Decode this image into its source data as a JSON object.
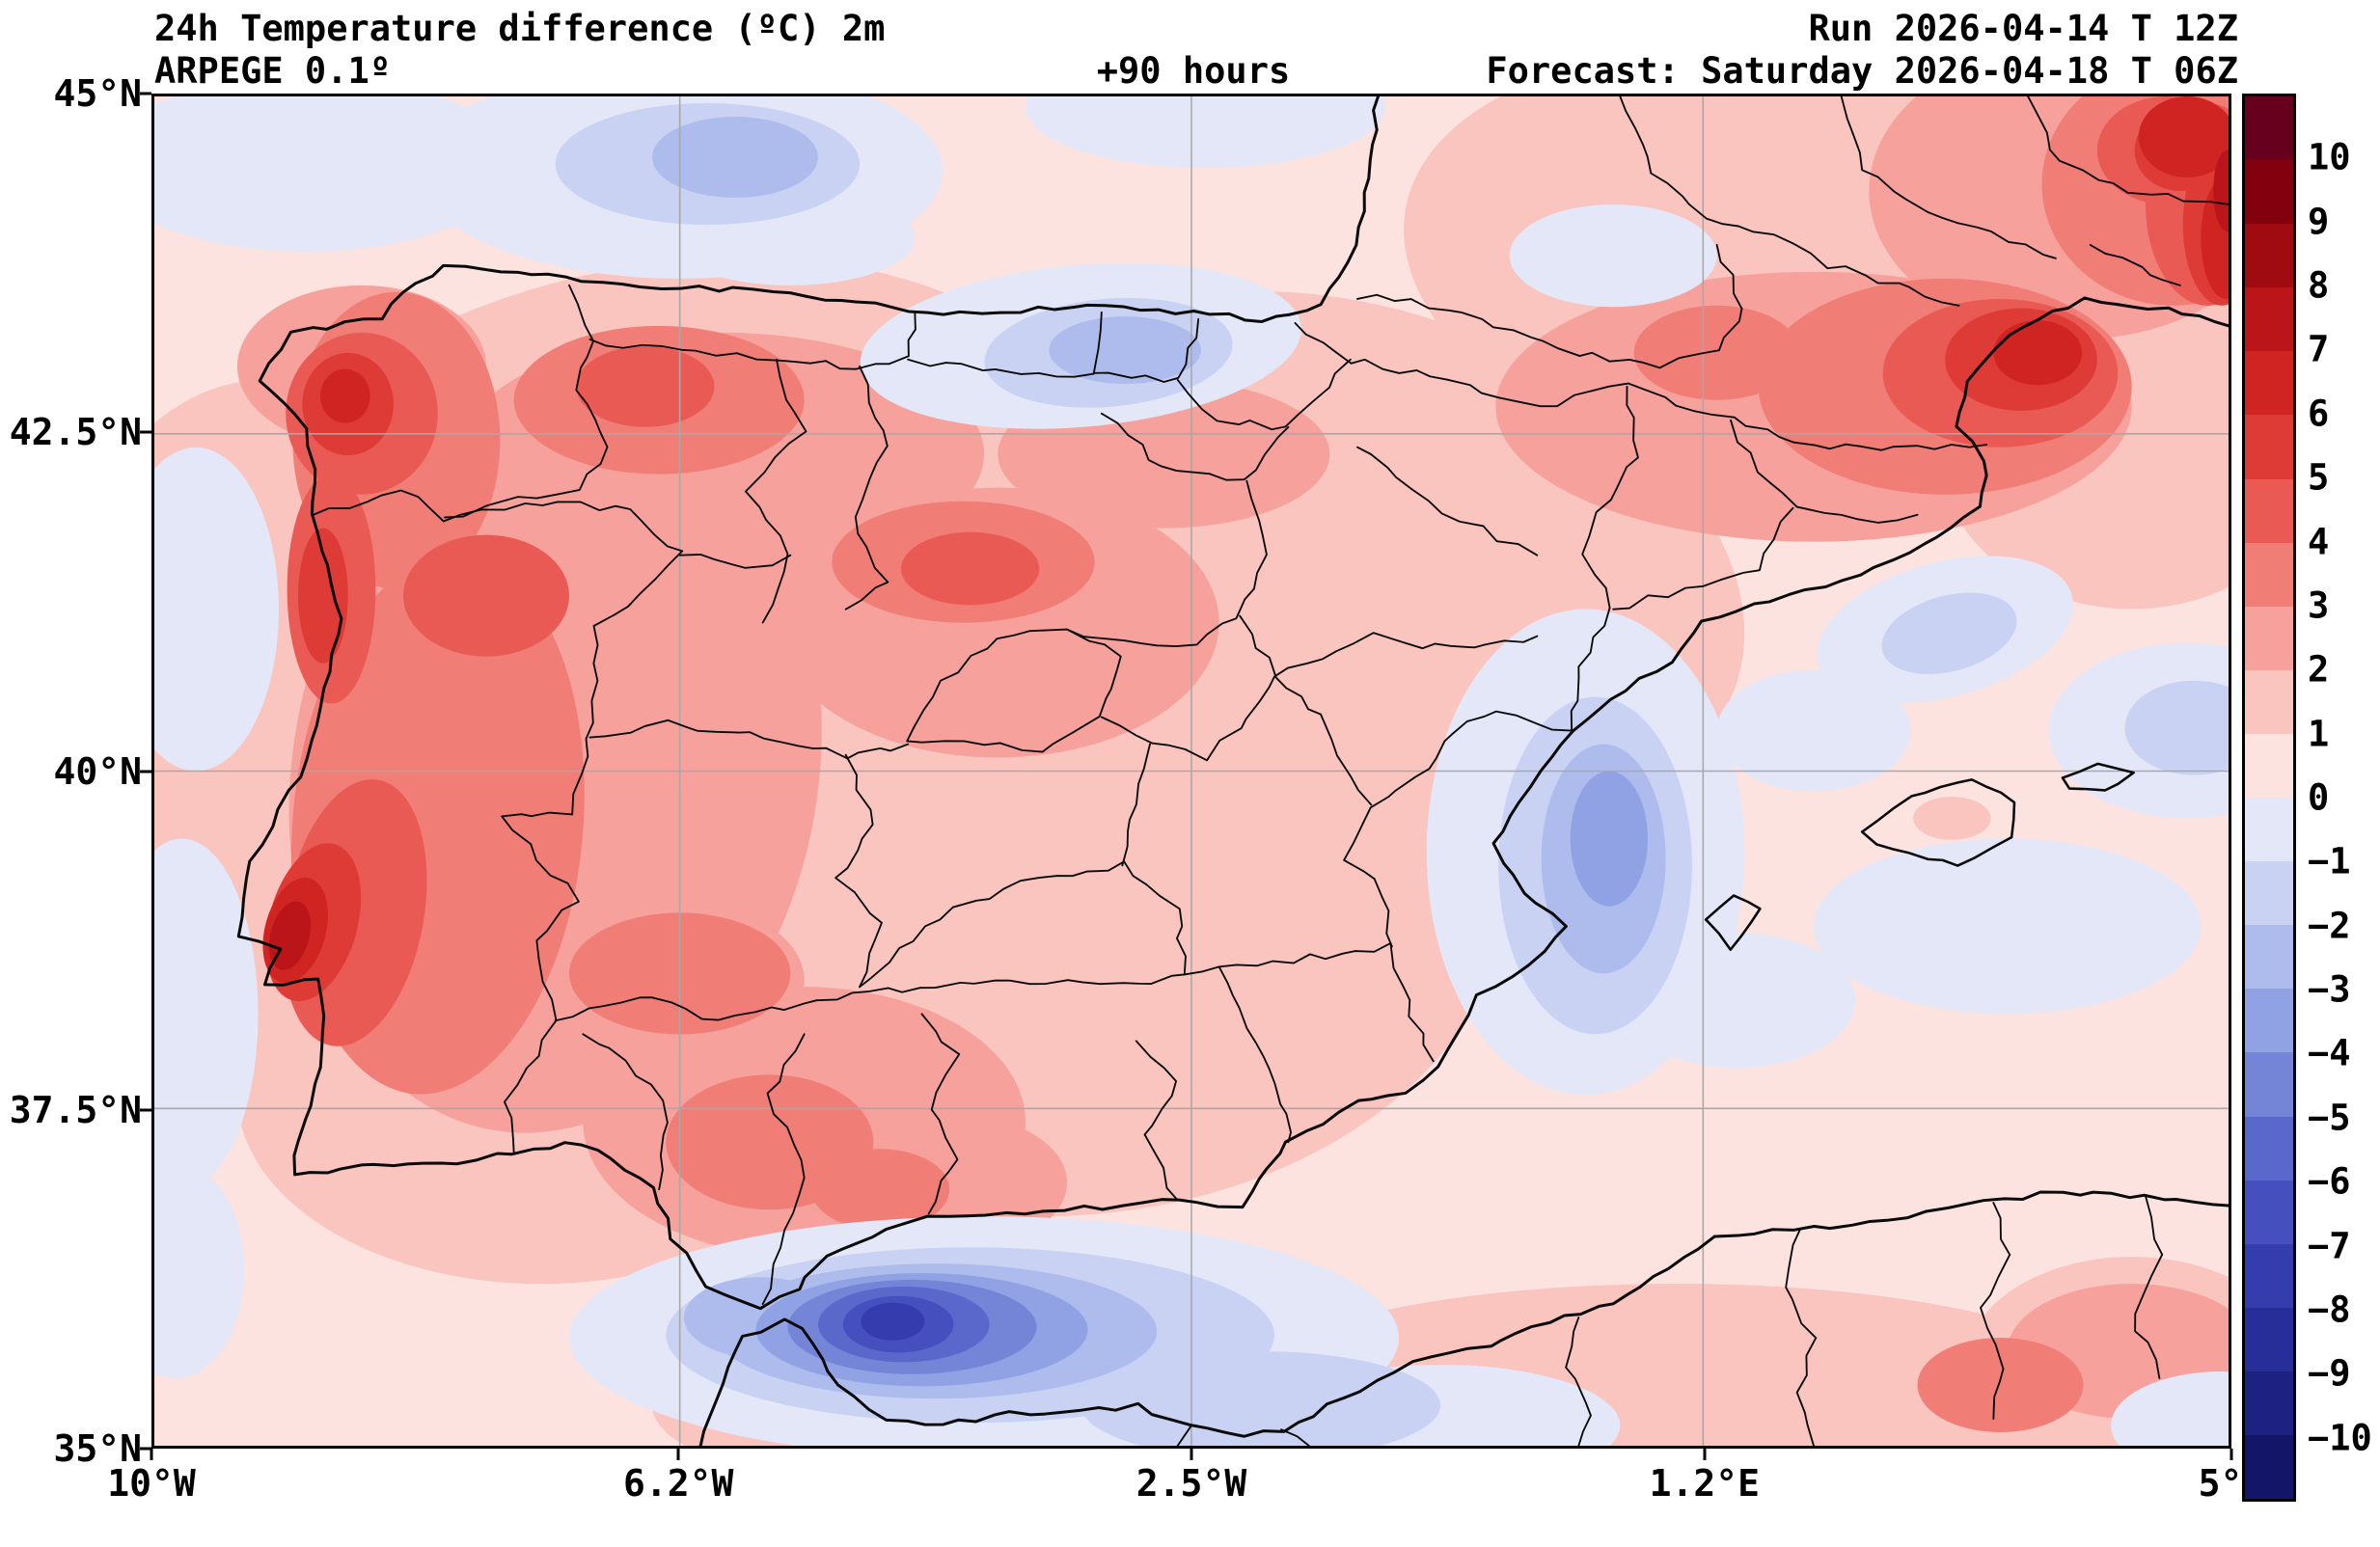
{
  "header": {
    "title": "24h Temperature difference (ºC) 2m",
    "model": "ARPEGE 0.1º",
    "lead_time": "+90 hours",
    "run": "Run 2026-04-14 T 12Z",
    "forecast": "Forecast: Saturday 2026-04-18 T 06Z"
  },
  "axes": {
    "x_ticks": [
      {
        "label": "10°W",
        "lon": -10
      },
      {
        "label": "6.2°W",
        "lon": -6.2
      },
      {
        "label": "2.5°W",
        "lon": -2.5
      },
      {
        "label": "1.2°E",
        "lon": 1.2
      },
      {
        "label": "5°E",
        "lon": 5
      }
    ],
    "y_ticks": [
      {
        "label": "45°N",
        "lat": 45
      },
      {
        "label": "42.5°N",
        "lat": 42.5
      },
      {
        "label": "40°N",
        "lat": 40
      },
      {
        "label": "37.5°N",
        "lat": 37.5
      },
      {
        "label": "35°N",
        "lat": 35
      }
    ]
  },
  "colorbar": {
    "tick_labels": [
      "10",
      "9",
      "8",
      "7",
      "6",
      "5",
      "4",
      "3",
      "2",
      "1",
      "0",
      "−1",
      "−2",
      "−3",
      "−4",
      "−5",
      "−6",
      "−7",
      "−8",
      "−9",
      "−10"
    ],
    "colors_top_to_bottom": [
      "#67001f",
      "#83000f",
      "#a00b12",
      "#bb1419",
      "#cf2422",
      "#de3a36",
      "#ea5a55",
      "#f17d77",
      "#f6a19b",
      "#fac4bf",
      "#fde3e0",
      "#e3e7f8",
      "#c9d2f2",
      "#adbcec",
      "#90a2e3",
      "#7485d8",
      "#5a68cc",
      "#454fbe",
      "#343cae",
      "#272e9a",
      "#1c2182",
      "#131668"
    ]
  },
  "chart_data": {
    "type": "heatmap",
    "title": "24h Temperature difference (ºC) 2m",
    "model": "ARPEGE 0.1º",
    "lead_hours": 90,
    "run": "2026-04-14 12Z",
    "forecast_valid": "Saturday 2026-04-18 06Z",
    "lon_range_deg": [
      -10,
      5
    ],
    "lat_range_deg": [
      35,
      45
    ],
    "colorbar_range_c": [
      -10,
      10
    ],
    "grid": true,
    "legend_position": "right",
    "features": [
      "Widespread +1 to +5 °C 24h warming over most of the Iberian Peninsula",
      "Strongest warming cores +5 to +9 °C near the Lisbon coast, Galicia, the western Iberian interior and the eastern Pyrenees / SE France",
      "Marked cooling −4 to −8 °C over the Alboran Sea south of Spain",
      "Weak cooling −1 to −4 °C along the Valencia coastal waters, the Basque/Cantabrian area and parts of the Bay of Biscay",
      "Mostly +1 to +2 °C over surrounding Atlantic and Mediterranean waters"
    ]
  }
}
